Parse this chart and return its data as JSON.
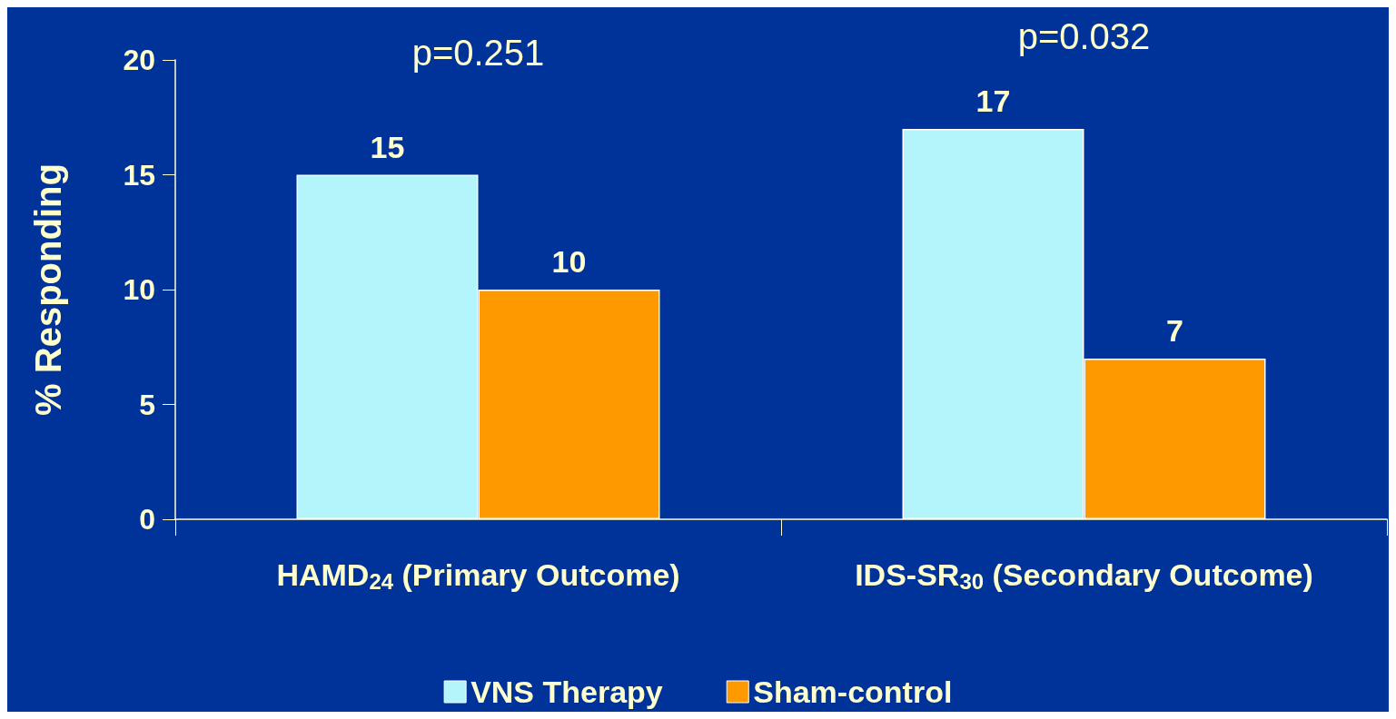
{
  "chart_data": {
    "type": "bar",
    "ylabel": "% Responding",
    "categories": [
      "HAMD$_{24}$ (Primary Outcome)",
      "IDS-SR$_{30}$ (Secondary Outcome)"
    ],
    "series": [
      {
        "name": "VNS Therapy",
        "color": "#b3f5fb",
        "values": [
          15,
          17
        ]
      },
      {
        "name": "Sham-control",
        "color": "#ff9900",
        "values": [
          10,
          7
        ]
      }
    ],
    "ylim": [
      0,
      20
    ],
    "yticks": [
      0,
      5,
      10,
      15,
      20
    ],
    "data_labels": true,
    "grid": false,
    "legend": "bottom",
    "annotations": [
      "p=0.251",
      "p=0.032"
    ]
  }
}
